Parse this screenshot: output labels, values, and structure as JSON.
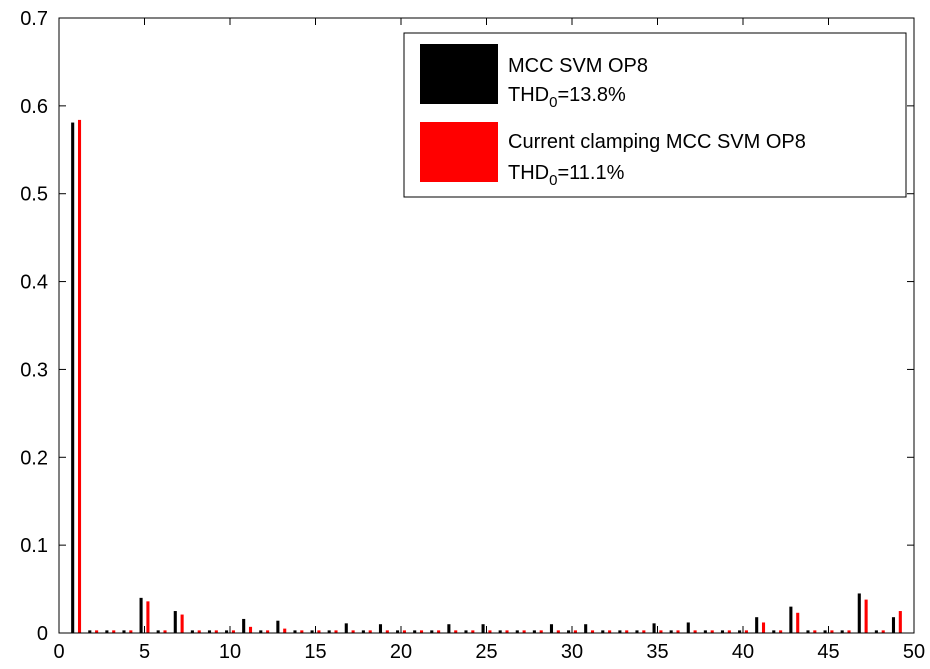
{
  "chart_data": {
    "type": "bar",
    "title": "",
    "xlabel": "",
    "ylabel": "",
    "xlim": [
      0,
      50
    ],
    "ylim": [
      0,
      0.7
    ],
    "xticks": [
      0,
      5,
      10,
      15,
      20,
      25,
      30,
      35,
      40,
      45,
      50
    ],
    "yticks": [
      0,
      0.1,
      0.2,
      0.3,
      0.4,
      0.5,
      0.6,
      0.7
    ],
    "xtick_labels": [
      "0",
      "5",
      "10",
      "15",
      "20",
      "25",
      "30",
      "35",
      "40",
      "45",
      "50"
    ],
    "ytick_labels": [
      "0",
      "0.1",
      "0.2",
      "0.3",
      "0.4",
      "0.5",
      "0.6",
      "0.7"
    ],
    "grid": false,
    "legend_position": "top-right",
    "x": [
      1,
      2,
      3,
      4,
      5,
      6,
      7,
      8,
      9,
      10,
      11,
      12,
      13,
      14,
      15,
      16,
      17,
      18,
      19,
      20,
      21,
      22,
      23,
      24,
      25,
      26,
      27,
      28,
      29,
      30,
      31,
      32,
      33,
      34,
      35,
      36,
      37,
      38,
      39,
      40,
      41,
      42,
      43,
      44,
      45,
      46,
      47,
      48,
      49
    ],
    "series": [
      {
        "name": "MCC SVM OP8",
        "legend_line1": "MCC SVM OP8",
        "legend_prefix": "THD",
        "legend_sub": "0",
        "legend_suffix": "=13.8%",
        "color": "#000000",
        "values": [
          0.581,
          0.003,
          0.003,
          0.003,
          0.04,
          0.003,
          0.025,
          0.003,
          0.003,
          0.003,
          0.016,
          0.003,
          0.014,
          0.003,
          0.003,
          0.003,
          0.011,
          0.003,
          0.01,
          0.003,
          0.003,
          0.003,
          0.01,
          0.003,
          0.01,
          0.003,
          0.003,
          0.003,
          0.01,
          0.003,
          0.01,
          0.003,
          0.003,
          0.003,
          0.011,
          0.003,
          0.012,
          0.003,
          0.003,
          0.003,
          0.018,
          0.003,
          0.03,
          0.003,
          0.003,
          0.003,
          0.045,
          0.003,
          0.018
        ]
      },
      {
        "name": "Current clamping MCC SVM OP8",
        "legend_line1": "Current clamping MCC SVM OP8",
        "legend_prefix": "THD",
        "legend_sub": "0",
        "legend_suffix": "=11.1%",
        "color": "#ff0000",
        "values": [
          0.584,
          0.003,
          0.003,
          0.003,
          0.036,
          0.003,
          0.021,
          0.003,
          0.003,
          0.003,
          0.007,
          0.003,
          0.005,
          0.003,
          0.003,
          0.003,
          0.003,
          0.003,
          0.003,
          0.003,
          0.003,
          0.003,
          0.003,
          0.003,
          0.003,
          0.003,
          0.003,
          0.003,
          0.003,
          0.003,
          0.003,
          0.003,
          0.003,
          0.003,
          0.003,
          0.003,
          0.003,
          0.003,
          0.003,
          0.003,
          0.012,
          0.003,
          0.023,
          0.003,
          0.003,
          0.003,
          0.038,
          0.003,
          0.025
        ]
      }
    ]
  }
}
